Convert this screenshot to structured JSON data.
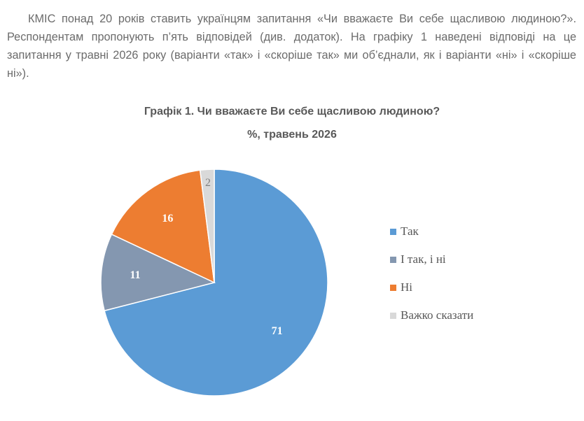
{
  "intro_text": "КМІС понад 20 років ставить українцям запитання «Чи вважаєте Ви себе щасливою людиною?». Респондентам пропонують п’ять відповідей (див. додаток). На графіку 1 наведені відповіді на це запитання у травні 2026 року (варіанти «так» і «скоріше так» ми об’єднали, як і варіанти «ні» і «скоріше ні»).",
  "chart_data": {
    "type": "pie",
    "title": "Графік 1. Чи вважаєте Ви себе щасливою людиною?",
    "subtitle": "%, травень 2026",
    "legend_position": "right",
    "start_angle_deg": 0,
    "direction": "clockwise",
    "slices": [
      {
        "label": "Так",
        "value": 71,
        "color": "#5b9bd5",
        "label_color": "#ffffff"
      },
      {
        "label": "І так, і ні",
        "value": 11,
        "color": "#8497b0",
        "label_color": "#ffffff"
      },
      {
        "label": "Ні",
        "value": 16,
        "color": "#ed7d31",
        "label_color": "#ffffff"
      },
      {
        "label": "Важко сказати",
        "value": 2,
        "color": "#d9d9d9",
        "label_color": "#7f7f7f"
      }
    ]
  }
}
